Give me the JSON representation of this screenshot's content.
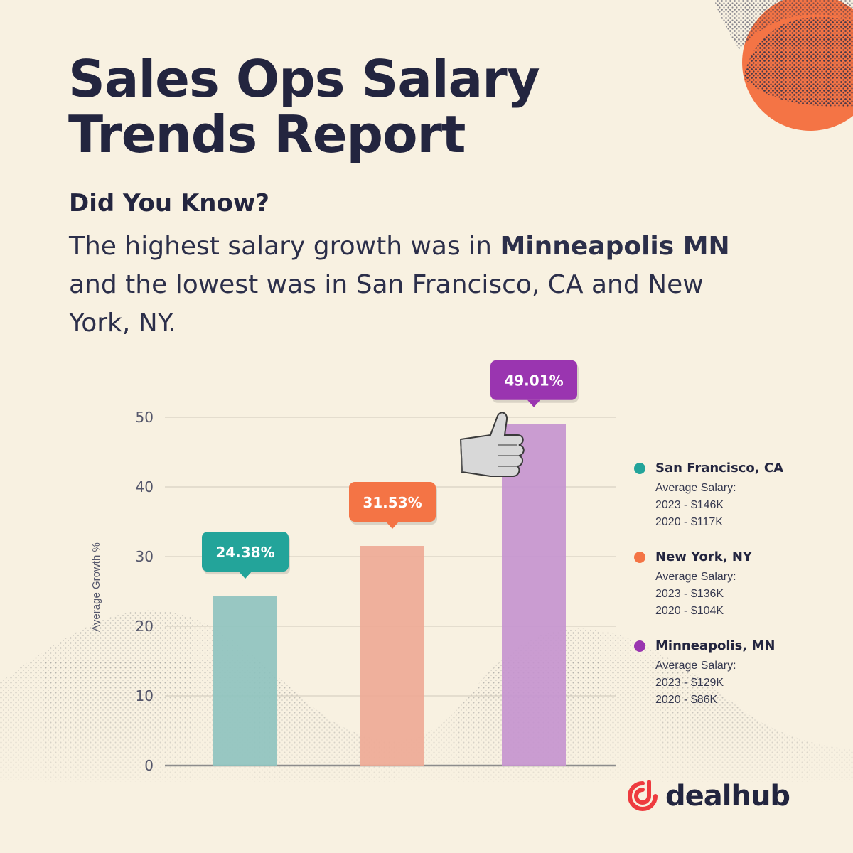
{
  "header": {
    "title_line1": "Sales Ops Salary",
    "title_line2": "Trends Report",
    "subtitle": "Did You Know?",
    "body_part1": "The highest salary growth was in ",
    "body_bold1": "Minneapolis MN",
    "body_part2": " and the lowest was in San Francisco, CA and New York, NY."
  },
  "legend": {
    "items": [
      {
        "name": "San Francisco, CA",
        "caption": "Average Salary:",
        "line1": "2023 - $146K",
        "line2": "2020 - $117K"
      },
      {
        "name": "New York, NY",
        "caption": "Average Salary:",
        "line1": "2023 - $136K",
        "line2": "2020 - $104K"
      },
      {
        "name": "Minneapolis, MN",
        "caption": "Average Salary:",
        "line1": "2023 - $129K",
        "line2": "2020 - $86K"
      }
    ]
  },
  "logo": {
    "text": "dealhub"
  },
  "colors": {
    "background": "#f8f1e1",
    "teal": "#23a49a",
    "orange": "#f47445",
    "purple": "#9a35b0",
    "accent": "#f47445",
    "logo_red": "#ee3b3f"
  },
  "chart_data": {
    "type": "bar",
    "ylabel": "Average Growth %",
    "xlabel": "",
    "ylim": [
      0,
      50
    ],
    "yticks": [
      0,
      10,
      20,
      30,
      40,
      50
    ],
    "grid": true,
    "categories": [
      "San Francisco, CA",
      "New York, NY",
      "Minneapolis, MN"
    ],
    "values": [
      24.38,
      31.53,
      49.01
    ],
    "data_labels": [
      "24.38%",
      "31.53%",
      "49.01%"
    ],
    "bar_colors": [
      "#8fc3bf",
      "#eeaa96",
      "#c595cf"
    ],
    "label_colors": [
      "#23a49a",
      "#f47445",
      "#9a35b0"
    ]
  }
}
